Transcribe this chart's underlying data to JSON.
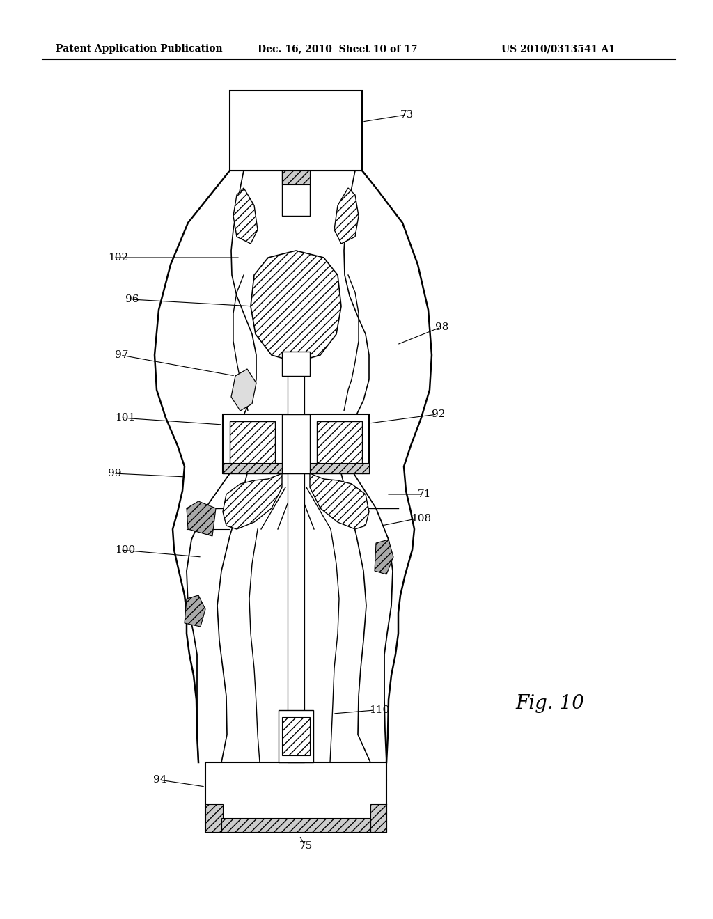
{
  "bg_color": "#ffffff",
  "header_left": "Patent Application Publication",
  "header_mid": "Dec. 16, 2010  Sheet 10 of 17",
  "header_right": "US 2010/0313541 A1",
  "fig_label": "Fig. 10",
  "title_fontsize": 10,
  "label_fontsize": 11,
  "fig_fontsize": 20
}
